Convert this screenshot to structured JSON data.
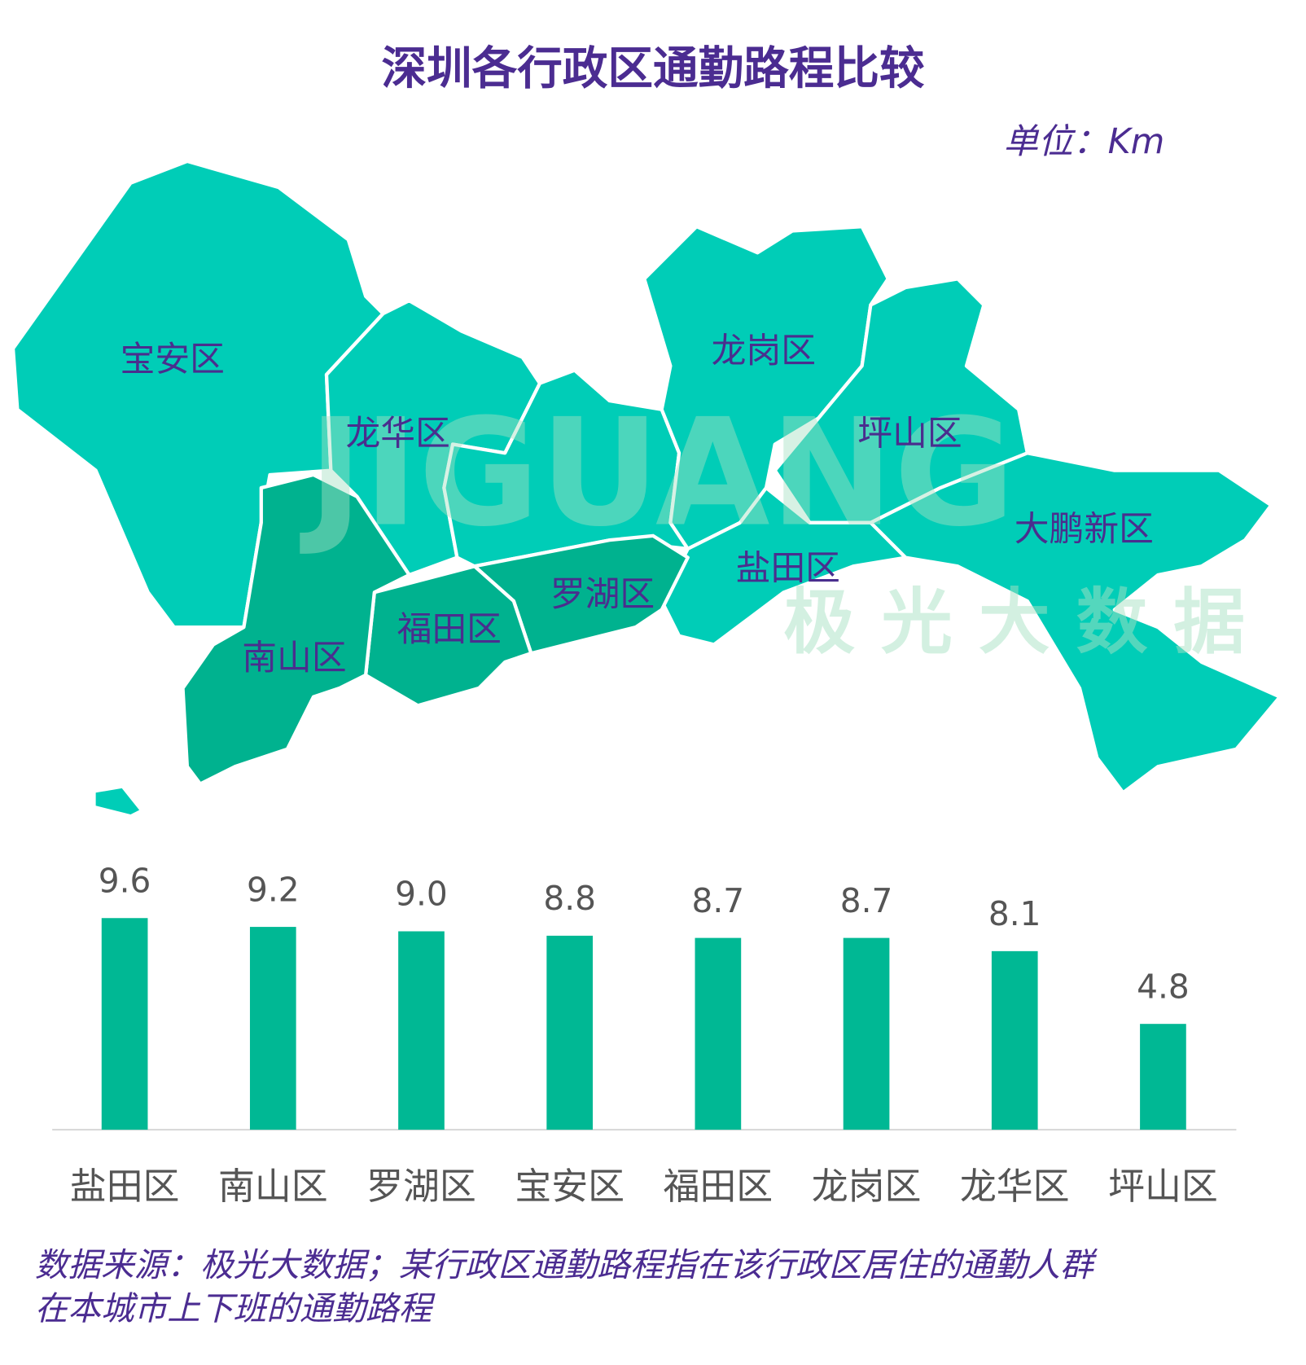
{
  "chart_data": {
    "type": "bar",
    "title": "深圳各行政区通勤路程比较",
    "unit": "单位：Km",
    "categories": [
      "盐田区",
      "南山区",
      "罗湖区",
      "宝安区",
      "福田区",
      "龙岗区",
      "龙华区",
      "坪山区"
    ],
    "values": [
      9.6,
      9.2,
      9.0,
      8.8,
      8.7,
      8.7,
      8.1,
      4.8
    ],
    "value_labels": [
      "9.6",
      "9.2",
      "9.0",
      "8.8",
      "8.7",
      "8.7",
      "8.1",
      "4.8"
    ],
    "color": "#00b894"
  },
  "map": {
    "labels": [
      "宝安区",
      "龙华区",
      "南山区",
      "福田区",
      "罗湖区",
      "龙岗区",
      "坪山区",
      "盐田区",
      "大鹏新区"
    ]
  },
  "watermark": {
    "latin": "JIGUANG",
    "chinese": "极光大数据"
  },
  "source": [
    "数据来源：极光大数据；某行政区通勤路程指在该行政区居住的通勤人群",
    "在本城市上下班的通勤路程"
  ]
}
